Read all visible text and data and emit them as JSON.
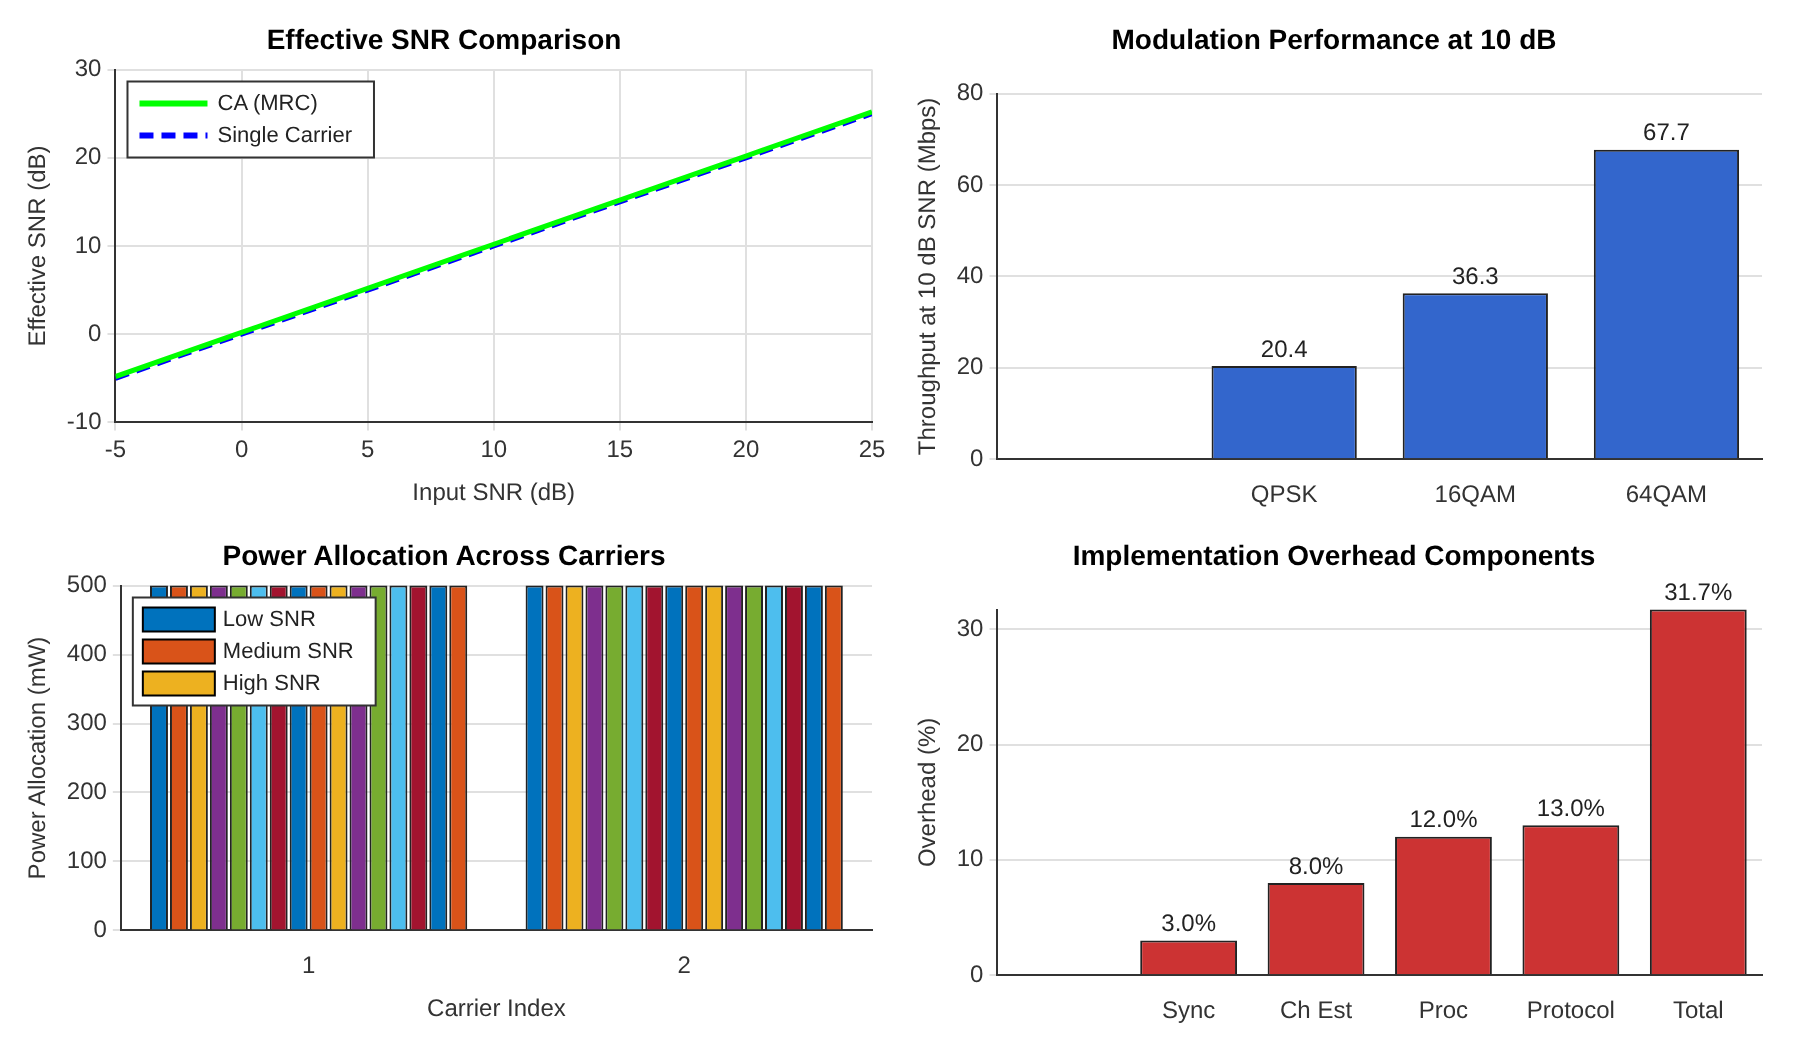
{
  "chart_data": [
    {
      "type": "line",
      "title": "Effective SNR Comparison",
      "xlabel": "Input SNR (dB)",
      "ylabel": "Effective SNR (dB)",
      "xlim": [
        -5,
        25
      ],
      "xticks": [
        -5,
        0,
        5,
        10,
        15,
        20,
        25
      ],
      "ylim": [
        -10,
        30
      ],
      "yticks": [
        -10,
        0,
        10,
        20,
        30
      ],
      "grid": true,
      "legend": "top left",
      "series": [
        {
          "name": "CA (MRC)",
          "color": "#00ff00",
          "x": [
            -5,
            0,
            5,
            10,
            15,
            20,
            25
          ],
          "values": [
            -4.8,
            0.2,
            5.2,
            10.2,
            15.2,
            20.2,
            25.2
          ],
          "line_style": "solid"
        },
        {
          "name": "Single Carrier",
          "color": "#0000ff",
          "x": [
            -5,
            0,
            5,
            10,
            15,
            20,
            25
          ],
          "values": [
            -5,
            0,
            5,
            10,
            15,
            20,
            25
          ],
          "line_style": "dashed"
        }
      ]
    },
    {
      "type": "bar",
      "title": "Modulation Performance at 10 dB",
      "ylabel": "Throughput at 10 dB SNR (Mbps)",
      "categories": [
        null,
        "QPSK",
        "16QAM",
        "64QAM"
      ],
      "values": [
        null,
        20.4,
        36.3,
        67.7
      ],
      "color": "#3366cc",
      "ylim": [
        0,
        80
      ],
      "yticks": [
        0,
        20,
        40,
        60,
        80
      ],
      "grid": true,
      "data_labels": true
    },
    {
      "type": "bar",
      "title": "Power Allocation Across Carriers",
      "xlabel": "Carrier Index",
      "ylabel": "Power Allocation (mW)",
      "categories": [
        "1",
        "2"
      ],
      "ylim": [
        0,
        500
      ],
      "yticks": [
        0,
        100,
        200,
        300,
        400,
        500
      ],
      "grid": true,
      "legend": "top left",
      "series": [
        {
          "name": "Low SNR",
          "color": "#0072bd",
          "values": [
            500,
            500
          ]
        },
        {
          "name": "Medium SNR",
          "color": "#d95319",
          "values": [
            500,
            500
          ]
        },
        {
          "name": "High SNR",
          "color": "#edb120",
          "values": [
            500,
            500
          ]
        },
        {
          "color": "#7e2f8e",
          "values": [
            500,
            500
          ]
        },
        {
          "color": "#77ac30",
          "values": [
            500,
            500
          ]
        },
        {
          "color": "#4dbeee",
          "values": [
            500,
            500
          ]
        },
        {
          "color": "#a2142f",
          "values": [
            500,
            500
          ]
        },
        {
          "color": "#0072bd",
          "values": [
            500,
            500
          ]
        },
        {
          "color": "#d95319",
          "values": [
            500,
            500
          ]
        },
        {
          "color": "#edb120",
          "values": [
            500,
            500
          ]
        },
        {
          "color": "#7e2f8e",
          "values": [
            500,
            500
          ]
        },
        {
          "color": "#77ac30",
          "values": [
            500,
            500
          ]
        },
        {
          "color": "#4dbeee",
          "values": [
            500,
            500
          ]
        },
        {
          "color": "#a2142f",
          "values": [
            500,
            500
          ]
        },
        {
          "color": "#0072bd",
          "values": [
            500,
            500
          ]
        },
        {
          "color": "#d95319",
          "values": [
            500,
            500
          ]
        }
      ]
    },
    {
      "type": "bar",
      "title": "Implementation Overhead Components",
      "ylabel": "Overhead (%)",
      "categories": [
        null,
        "Sync",
        "Ch Est",
        "Proc",
        "Protocol",
        "Total"
      ],
      "values": [
        null,
        3.0,
        8.0,
        12.0,
        13.0,
        31.7
      ],
      "value_labels": [
        null,
        "3.0%",
        "8.0%",
        "12.0%",
        "13.0%",
        "31.7%"
      ],
      "color": "#cc3333",
      "ylim": [
        0,
        31.7
      ],
      "yticks": [
        0,
        10,
        20,
        30
      ],
      "grid": true
    }
  ]
}
